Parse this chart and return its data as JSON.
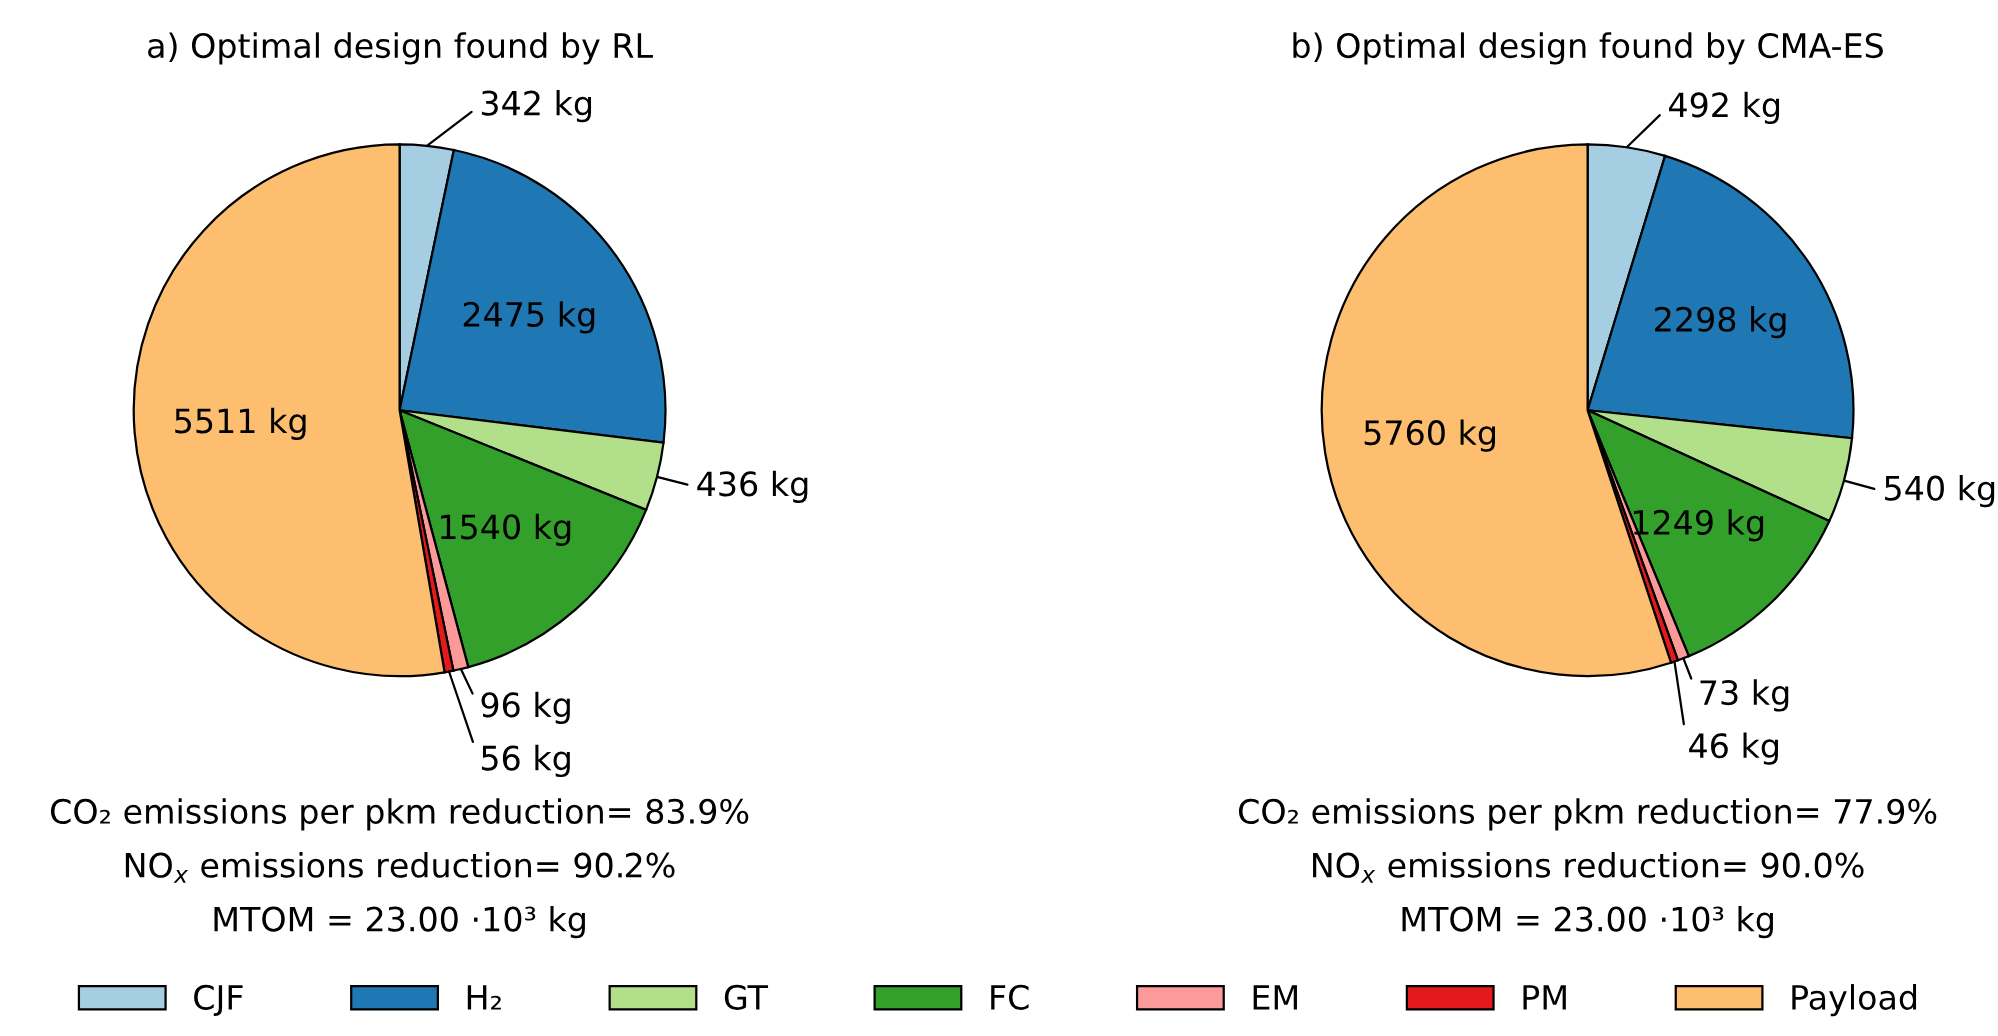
{
  "chart_data": [
    {
      "type": "pie",
      "title": "a) Optimal design found by RL",
      "categories": [
        "CJF",
        "H₂",
        "GT",
        "FC",
        "EM",
        "PM",
        "Payload"
      ],
      "values": [
        342,
        2475,
        436,
        1540,
        96,
        56,
        5511
      ],
      "value_labels": [
        "342 kg",
        "2475 kg",
        "436 kg",
        "1540 kg",
        "96 kg",
        "56 kg",
        "5511 kg"
      ],
      "colors": [
        "#a6cee3",
        "#1f78b4",
        "#b2df8a",
        "#33a02c",
        "#fb9a99",
        "#e31a1c",
        "#fdbf6f"
      ],
      "annotations": [
        "CO₂ emissions per pkm reduction= 83.9%",
        "NO$_{x}$ emissions reduction= 90.2%",
        "MTOM = 23.00 ·10³ kg"
      ],
      "legend": "bottom"
    },
    {
      "type": "pie",
      "title": "b) Optimal design found by CMA-ES",
      "categories": [
        null,
        null,
        null,
        null,
        null,
        null,
        null
      ],
      "values": [
        492,
        2298,
        540,
        1249,
        73,
        46,
        5760
      ],
      "value_labels": [
        "492 kg",
        "2298 kg",
        "540 kg",
        "1249 kg",
        "73 kg",
        "46 kg",
        "5760 kg"
      ],
      "colors": [
        "#a6cee3",
        "#1f78b4",
        "#b2df8a",
        "#33a02c",
        "#fb9a99",
        "#e31a1c",
        "#fdbf6f"
      ],
      "annotations": [
        "CO₂ emissions per pkm reduction= 77.9%",
        "NO$_{x}$ emissions reduction= 90.0%",
        "MTOM = 23.00 ·10³ kg"
      ]
    }
  ]
}
